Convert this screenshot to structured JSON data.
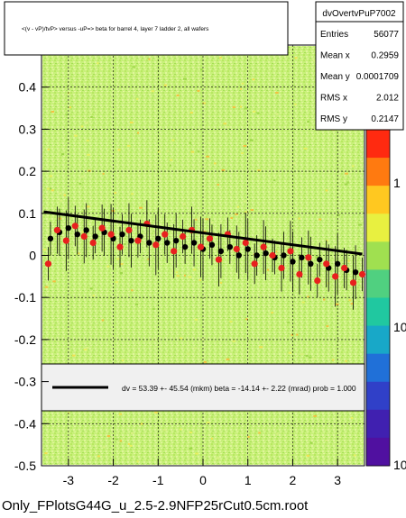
{
  "chart_data": {
    "type": "scatter",
    "title": "<(v - vP)/tvP> versus -uP=> beta for barrel 4, layer 7 ladder 2, all wafers",
    "xlim": [
      -3.6,
      3.6
    ],
    "ylim": [
      -0.5,
      0.5
    ],
    "x_ticks": [
      -3,
      -2,
      -1,
      0,
      1,
      2,
      3
    ],
    "y_ticks": [
      -0.5,
      -0.4,
      -0.3,
      -0.2,
      -0.1,
      0,
      0.1,
      0.2,
      0.3,
      0.4
    ],
    "y_tick_labels": [
      "-0.5",
      "-0.4",
      "-0.3",
      "-0.2",
      "-0.1",
      "0",
      "0.1",
      "0.2",
      "0.3",
      "0.4"
    ],
    "colorbar": {
      "scale": "log",
      "tick_labels": [
        "1",
        "10",
        "10"
      ]
    },
    "stats": {
      "name": "dvOvertvPuP7002",
      "rows": [
        {
          "label": "Entries",
          "value": "56077"
        },
        {
          "label": "Mean x",
          "value": "0.2959"
        },
        {
          "label": "Mean y",
          "value": "0.0001709"
        },
        {
          "label": "RMS x",
          "value": "2.012"
        },
        {
          "label": "RMS y",
          "value": "0.2147"
        }
      ]
    },
    "fit": {
      "legend_text": "dv =   53.39 +- 45.54 (mkm) beta =  -14.14 +-  2.22 (mrad) prob = 1.000",
      "intercept": 0.0534,
      "slope": -0.01414
    },
    "series": [
      {
        "marker": "black",
        "x": [
          -3.4,
          -3.2,
          -3.0,
          -2.8,
          -2.6,
          -2.4,
          -2.2,
          -2.0,
          -1.8,
          -1.6,
          -1.4,
          -1.2,
          -1.0,
          -0.8,
          -0.6,
          -0.4,
          -0.2,
          0.0,
          0.2,
          0.4,
          0.6,
          0.8,
          1.0,
          1.2,
          1.4,
          1.6,
          1.8,
          2.0,
          2.2,
          2.4,
          2.6,
          2.8,
          3.0,
          3.2,
          3.4
        ],
        "y": [
          0.04,
          0.055,
          0.065,
          0.05,
          0.06,
          0.045,
          0.055,
          0.04,
          0.05,
          0.035,
          0.045,
          0.03,
          0.04,
          0.03,
          0.035,
          0.02,
          0.03,
          0.015,
          0.025,
          0.01,
          0.02,
          0.0,
          0.015,
          0.0,
          0.005,
          -0.005,
          0.0,
          -0.015,
          -0.005,
          -0.02,
          -0.01,
          -0.03,
          -0.02,
          -0.035,
          -0.04
        ]
      },
      {
        "marker": "red",
        "x": [
          -3.45,
          -3.25,
          -3.05,
          -2.85,
          -2.65,
          -2.45,
          -2.25,
          -2.05,
          -1.85,
          -1.65,
          -1.45,
          -1.25,
          -1.05,
          -0.85,
          -0.65,
          -0.45,
          -0.25,
          -0.05,
          0.15,
          0.35,
          0.55,
          0.75,
          0.95,
          1.15,
          1.35,
          1.55,
          1.75,
          1.95,
          2.15,
          2.35,
          2.55,
          2.75,
          2.95,
          3.15,
          3.35,
          3.55
        ],
        "y": [
          -0.02,
          0.06,
          0.035,
          0.07,
          0.045,
          0.03,
          0.065,
          0.05,
          0.02,
          0.06,
          0.035,
          0.075,
          0.025,
          0.05,
          0.01,
          0.045,
          0.06,
          0.02,
          0.04,
          -0.01,
          0.05,
          0.015,
          0.03,
          -0.02,
          0.02,
          0.0,
          -0.03,
          0.01,
          -0.045,
          -0.005,
          -0.06,
          -0.02,
          -0.05,
          -0.03,
          -0.065,
          -0.045
        ]
      }
    ]
  },
  "footer_text": "Only_FPlotsG44G_u_2.5-2.9NFP25rCut0.5cm.root"
}
